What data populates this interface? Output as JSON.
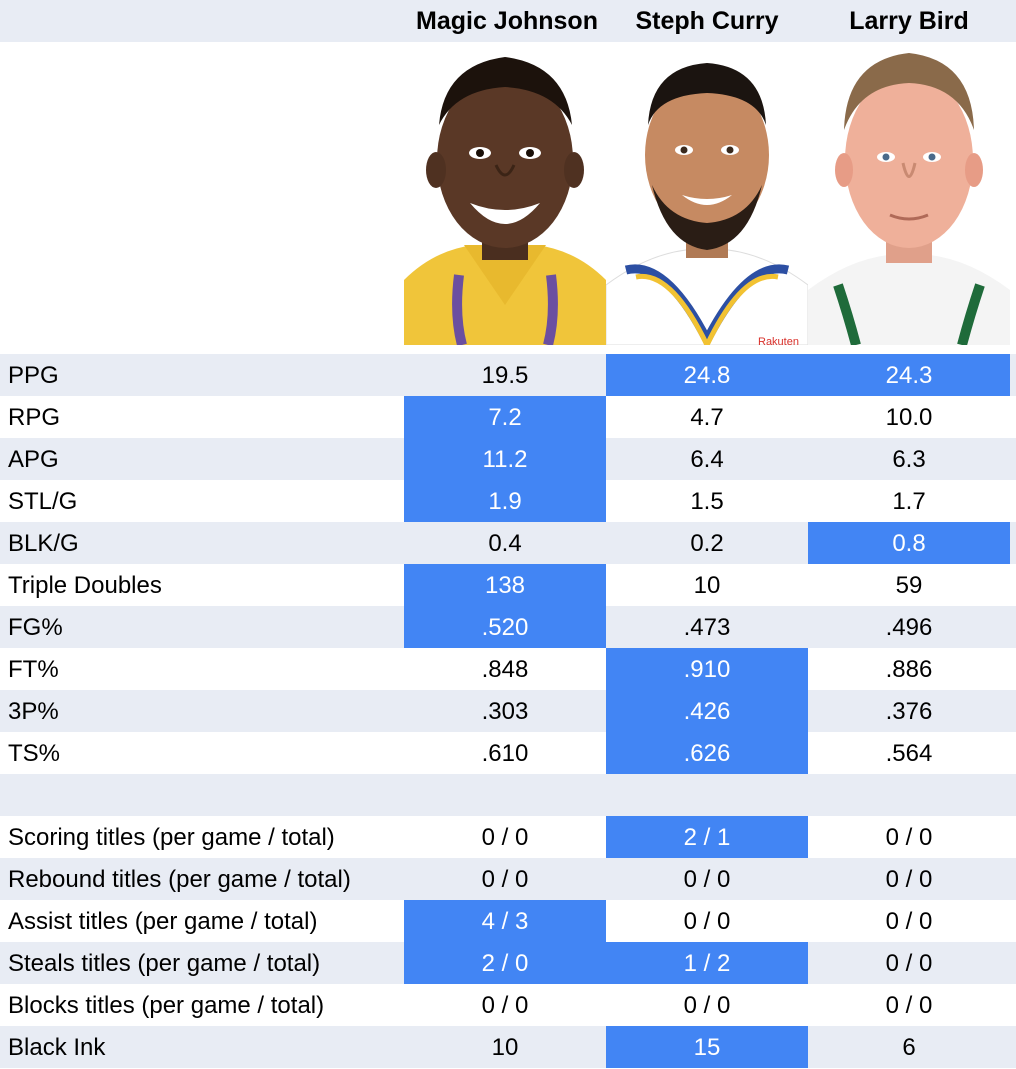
{
  "players": [
    {
      "name": "Magic Johnson",
      "photo": "magic-johnson-photo"
    },
    {
      "name": "Steph Curry",
      "photo": "steph-curry-photo",
      "jersey_text": "Rakuten"
    },
    {
      "name": "Larry Bird",
      "photo": "larry-bird-photo"
    }
  ],
  "colors": {
    "highlight": "#4285f4",
    "stripe": "#e8ecf4",
    "highlight_text": "#ffffff"
  },
  "chart_data": {
    "type": "table",
    "columns": [
      "",
      "Magic Johnson",
      "Steph Curry",
      "Larry Bird"
    ],
    "rows": [
      {
        "label": "PPG",
        "values": [
          "19.5",
          "24.8",
          "24.3"
        ],
        "highlight": [
          false,
          true,
          true
        ]
      },
      {
        "label": "RPG",
        "values": [
          "7.2",
          "4.7",
          "10.0"
        ],
        "highlight": [
          true,
          false,
          false
        ]
      },
      {
        "label": "APG",
        "values": [
          "11.2",
          "6.4",
          "6.3"
        ],
        "highlight": [
          true,
          false,
          false
        ]
      },
      {
        "label": "STL/G",
        "values": [
          "1.9",
          "1.5",
          "1.7"
        ],
        "highlight": [
          true,
          false,
          false
        ]
      },
      {
        "label": "BLK/G",
        "values": [
          "0.4",
          "0.2",
          "0.8"
        ],
        "highlight": [
          false,
          false,
          true
        ]
      },
      {
        "label": "Triple Doubles",
        "values": [
          "138",
          "10",
          "59"
        ],
        "highlight": [
          true,
          false,
          false
        ]
      },
      {
        "label": "FG%",
        "values": [
          ".520",
          ".473",
          ".496"
        ],
        "highlight": [
          true,
          false,
          false
        ]
      },
      {
        "label": "FT%",
        "values": [
          ".848",
          ".910",
          ".886"
        ],
        "highlight": [
          false,
          true,
          false
        ]
      },
      {
        "label": "3P%",
        "values": [
          ".303",
          ".426",
          ".376"
        ],
        "highlight": [
          false,
          true,
          false
        ]
      },
      {
        "label": "TS%",
        "values": [
          ".610",
          ".626",
          ".564"
        ],
        "highlight": [
          false,
          true,
          false
        ]
      },
      {
        "label": "",
        "values": [
          "",
          "",
          ""
        ],
        "highlight": [
          false,
          false,
          false
        ]
      },
      {
        "label": "Scoring titles (per game / total)",
        "values": [
          "0 / 0",
          "2 / 1",
          "0 / 0"
        ],
        "highlight": [
          false,
          true,
          false
        ]
      },
      {
        "label": "Rebound titles (per game / total)",
        "values": [
          "0 / 0",
          "0 / 0",
          "0 / 0"
        ],
        "highlight": [
          false,
          false,
          false
        ]
      },
      {
        "label": "Assist titles (per game / total)",
        "values": [
          "4 / 3",
          "0 / 0",
          "0 / 0"
        ],
        "highlight": [
          true,
          false,
          false
        ]
      },
      {
        "label": "Steals titles (per game / total)",
        "values": [
          "2 / 0",
          "1 / 2",
          "0 / 0"
        ],
        "highlight": [
          true,
          true,
          false
        ]
      },
      {
        "label": "Blocks titles (per game / total)",
        "values": [
          "0 / 0",
          "0 / 0",
          "0 / 0"
        ],
        "highlight": [
          false,
          false,
          false
        ]
      },
      {
        "label": "Black Ink",
        "values": [
          "10",
          "15",
          "6"
        ],
        "highlight": [
          false,
          true,
          false
        ]
      }
    ]
  }
}
